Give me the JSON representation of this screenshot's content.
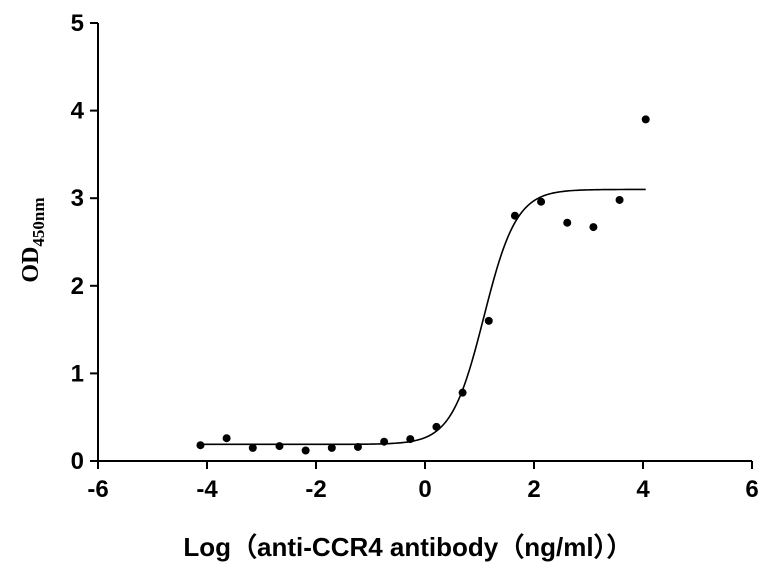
{
  "chart_data": {
    "type": "scatter",
    "title": "",
    "xlabel": "Log（anti-CCR4 antibody（ng/ml））",
    "ylabel": {
      "main": "OD",
      "subscript": "450nm"
    },
    "xlim": [
      -6,
      6
    ],
    "ylim": [
      0,
      5
    ],
    "xticks": [
      "-6",
      "-4",
      "-2",
      "0",
      "2",
      "4",
      "6"
    ],
    "yticks": [
      "0",
      "1",
      "2",
      "3",
      "4",
      "5"
    ],
    "grid": false,
    "legend": "none",
    "colors": {
      "points": "#000000",
      "curve": "#000000",
      "axes": "#000000"
    },
    "points": [
      {
        "x": -4.12,
        "y": 0.18
      },
      {
        "x": -3.64,
        "y": 0.26
      },
      {
        "x": -3.16,
        "y": 0.15
      },
      {
        "x": -2.67,
        "y": 0.17
      },
      {
        "x": -2.19,
        "y": 0.12
      },
      {
        "x": -1.71,
        "y": 0.15
      },
      {
        "x": -1.23,
        "y": 0.16
      },
      {
        "x": -0.75,
        "y": 0.22
      },
      {
        "x": -0.27,
        "y": 0.25
      },
      {
        "x": 0.21,
        "y": 0.39
      },
      {
        "x": 0.69,
        "y": 0.78
      },
      {
        "x": 1.17,
        "y": 1.6
      },
      {
        "x": 1.65,
        "y": 2.8
      },
      {
        "x": 2.13,
        "y": 2.96
      },
      {
        "x": 2.61,
        "y": 2.72
      },
      {
        "x": 3.09,
        "y": 2.67
      },
      {
        "x": 3.57,
        "y": 2.98
      },
      {
        "x": 4.05,
        "y": 3.9
      }
    ],
    "fit_curve": {
      "model": "four-parameter logistic",
      "bottom": 0.19,
      "top": 3.1,
      "logEC50": 1.08,
      "hill_slope": 1.45,
      "x_range": [
        -4.12,
        4.05
      ]
    }
  }
}
